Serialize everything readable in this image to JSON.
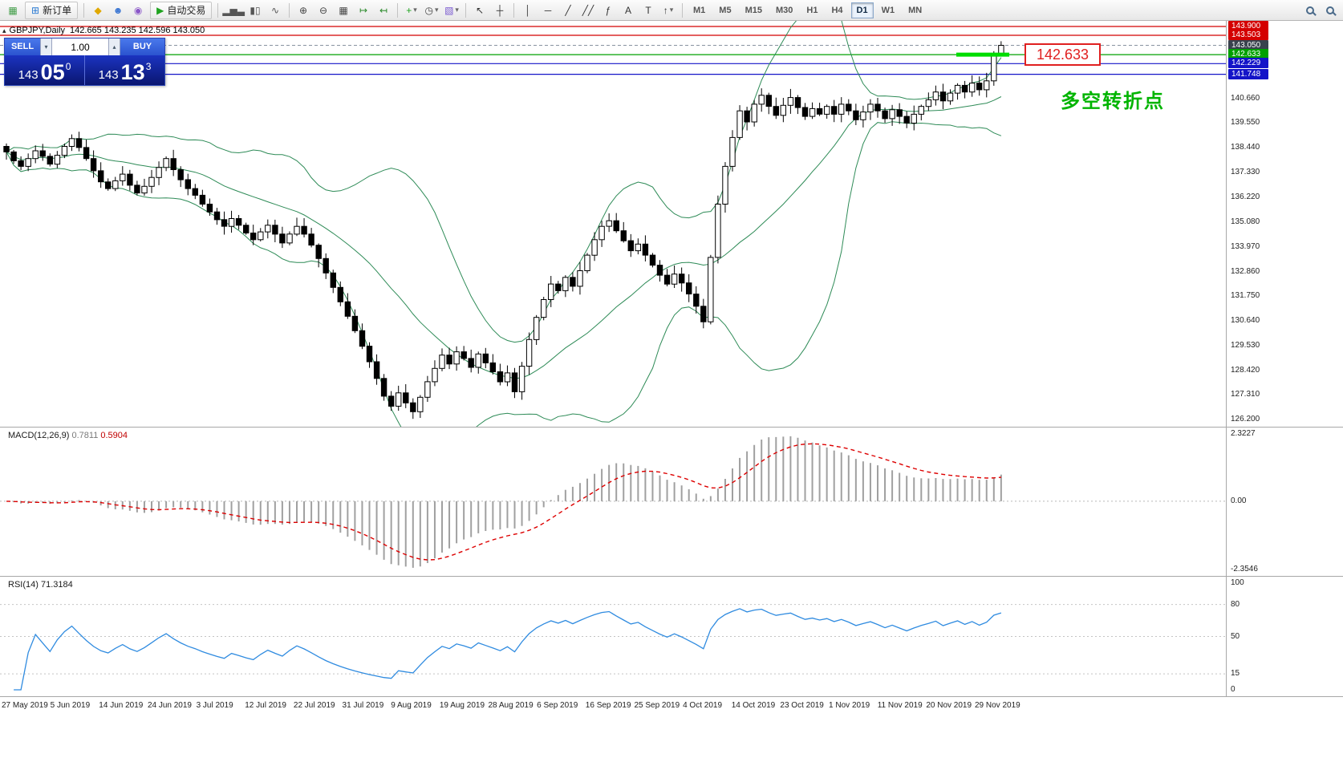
{
  "toolbar": {
    "timeframes": [
      "M1",
      "M5",
      "M15",
      "M30",
      "H1",
      "H4",
      "D1",
      "W1",
      "MN"
    ],
    "active_timeframe": "D1",
    "items": [
      {
        "kind": "icon",
        "name": "app-icon",
        "glyph": "▦",
        "color": "#3f9c46"
      },
      {
        "kind": "labelbtn",
        "name": "new-order-button",
        "icon": "new-order-icon",
        "glyph": "⊞",
        "color": "#2a7ad2",
        "label": "新订单"
      },
      {
        "kind": "sep"
      },
      {
        "kind": "icon",
        "name": "market-watch-icon",
        "glyph": "◆",
        "color": "#e0a800"
      },
      {
        "kind": "icon",
        "name": "profile-icon",
        "glyph": "☻",
        "color": "#3b76d2"
      },
      {
        "kind": "icon",
        "name": "community-icon",
        "glyph": "◉",
        "color": "#8a56c8"
      },
      {
        "kind": "labelbtn",
        "name": "autotrading-button",
        "icon": "autotrading-play-icon",
        "glyph": "▶",
        "color": "#1fa31f",
        "label": "自动交易"
      },
      {
        "kind": "sep"
      },
      {
        "kind": "icon",
        "name": "bar-chart-icon",
        "glyph": "▂▅▃",
        "color": "#555555"
      },
      {
        "kind": "icon",
        "name": "candlestick-chart-icon",
        "glyph": "▮▯",
        "color": "#555555"
      },
      {
        "kind": "icon",
        "name": "line-chart-icon",
        "glyph": "∿",
        "color": "#555555"
      },
      {
        "kind": "sep"
      },
      {
        "kind": "icon",
        "name": "zoom-in-icon",
        "glyph": "⊕",
        "color": "#444444"
      },
      {
        "kind": "icon",
        "name": "zoom-out-icon",
        "glyph": "⊖",
        "color": "#444444"
      },
      {
        "kind": "icon",
        "name": "tile-windows-icon",
        "glyph": "▦",
        "color": "#444444"
      },
      {
        "kind": "icon",
        "name": "auto-scroll-icon",
        "glyph": "↦",
        "color": "#2a8a2a"
      },
      {
        "kind": "icon",
        "name": "chart-shift-icon",
        "glyph": "↤",
        "color": "#2a8a2a"
      },
      {
        "kind": "sep"
      },
      {
        "kind": "dropbtn",
        "name": "indicators-button",
        "icon": "add-indicator-icon",
        "glyph": "+",
        "color": "#1fa31f"
      },
      {
        "kind": "dropbtn",
        "name": "periods-button",
        "icon": "clock-icon",
        "glyph": "◷",
        "color": "#444444"
      },
      {
        "kind": "dropbtn",
        "name": "templates-button",
        "icon": "template-icon",
        "glyph": "▧",
        "color": "#7a5ad0"
      },
      {
        "kind": "sep"
      },
      {
        "kind": "icon",
        "name": "cursor-icon",
        "glyph": "↖",
        "color": "#333333"
      },
      {
        "kind": "icon",
        "name": "crosshair-icon",
        "glyph": "┼",
        "color": "#333333"
      },
      {
        "kind": "sep"
      },
      {
        "kind": "icon",
        "name": "vertical-line-icon",
        "glyph": "│",
        "color": "#333333"
      },
      {
        "kind": "icon",
        "name": "horizontal-line-icon",
        "glyph": "─",
        "color": "#333333"
      },
      {
        "kind": "icon",
        "name": "trend-line-icon",
        "glyph": "╱",
        "color": "#333333"
      },
      {
        "kind": "icon",
        "name": "channel-icon",
        "glyph": "╱╱",
        "color": "#333333"
      },
      {
        "kind": "icon",
        "name": "fibonacci-icon",
        "glyph": "ƒ",
        "color": "#333333"
      },
      {
        "kind": "icon",
        "name": "text-icon",
        "glyph": "A",
        "color": "#333333"
      },
      {
        "kind": "icon",
        "name": "label-icon",
        "glyph": "T",
        "color": "#333333"
      },
      {
        "kind": "dropbtn",
        "name": "shapes-button",
        "icon": "arrow-shape-icon",
        "glyph": "↑",
        "color": "#333333"
      },
      {
        "kind": "sep"
      },
      {
        "kind": "timeframes"
      },
      {
        "kind": "spacer"
      },
      {
        "kind": "search",
        "name": "search-symbol-icon"
      },
      {
        "kind": "search",
        "name": "search-icon"
      }
    ]
  },
  "chart": {
    "symbol_period": "GBPJPY,Daily",
    "ohlc_text": "142.665 143.235 142.596 143.050",
    "annotation_price": "142.633",
    "note_text": "多空转折点",
    "trade_panel": {
      "sell_label": "SELL",
      "buy_label": "BUY",
      "lot": "1.00",
      "sell_price": {
        "prefix": "143",
        "big": "05",
        "sup": "0"
      },
      "buy_price": {
        "prefix": "143",
        "big": "13",
        "sup": "3"
      }
    },
    "hlines": [
      {
        "price": 143.9,
        "label": "143.900",
        "color": "#d40000",
        "box": "#d40000",
        "style": "solid"
      },
      {
        "price": 143.503,
        "label": "143.503",
        "color": "#d40000",
        "box": "#d40000",
        "style": "solid"
      },
      {
        "price": 143.05,
        "label": "143.050",
        "color": "#8892a0",
        "box": "#39424e",
        "style": "dashed"
      },
      {
        "price": 142.633,
        "label": "142.633",
        "color": "#00a000",
        "box": "#00a000",
        "style": "solid"
      },
      {
        "price": 142.229,
        "label": "142.229",
        "color": "#1414c8",
        "box": "#1414c8",
        "style": "solid"
      },
      {
        "price": 141.748,
        "label": "141.748",
        "color": "#1414c8",
        "box": "#1414c8",
        "style": "solid"
      }
    ],
    "scale_ticks": [
      "140.660",
      "139.550",
      "138.440",
      "137.330",
      "136.220",
      "135.080",
      "133.970",
      "132.860",
      "131.750",
      "130.640",
      "129.530",
      "128.420",
      "127.310",
      "126.200"
    ],
    "highlight_segment": {
      "price": 142.633,
      "color": "#00dd00"
    }
  },
  "macd": {
    "label_name": "MACD(12,26,9)",
    "value_main": "0.7811",
    "value_signal": "0.5904",
    "scale": [
      "2.3227",
      "0.00",
      "-2.3546"
    ]
  },
  "rsi": {
    "label_name": "RSI(14)",
    "label_value": "71.3184",
    "scale": [
      "100",
      "80",
      "50",
      "15",
      "0"
    ],
    "levels": [
      80,
      50,
      15
    ]
  },
  "chart_data": {
    "type": "candlestick",
    "symbol": "GBPJPY",
    "period": "Daily",
    "title": "GBPJPY Daily with Bollinger Bands(20,2), MACD(12,26,9), RSI(14)",
    "ylim": [
      126.2,
      143.9
    ],
    "hline_prices": [
      143.9,
      143.503,
      143.05,
      142.633,
      142.229,
      141.748
    ],
    "last_candle": {
      "open": 142.665,
      "high": 143.235,
      "low": 142.596,
      "close": 143.05
    },
    "closes": [
      138.25,
      137.85,
      137.6,
      137.95,
      138.3,
      138.05,
      137.7,
      138.1,
      138.5,
      138.85,
      138.45,
      137.95,
      137.4,
      136.9,
      136.6,
      136.95,
      137.25,
      136.75,
      136.4,
      136.7,
      137.1,
      137.55,
      137.95,
      137.45,
      137.0,
      136.6,
      136.3,
      135.9,
      135.55,
      135.2,
      134.9,
      135.25,
      134.95,
      134.6,
      134.3,
      134.65,
      134.95,
      134.55,
      134.15,
      134.55,
      134.9,
      134.55,
      134.05,
      133.45,
      132.8,
      132.15,
      131.5,
      130.85,
      130.2,
      129.5,
      128.8,
      128.05,
      127.25,
      126.8,
      127.4,
      126.95,
      126.55,
      127.2,
      127.9,
      128.5,
      129.1,
      128.7,
      129.25,
      128.95,
      128.55,
      129.15,
      128.75,
      128.35,
      127.9,
      128.3,
      127.45,
      128.6,
      129.8,
      130.8,
      131.6,
      132.3,
      132.0,
      132.6,
      132.2,
      132.9,
      133.6,
      134.3,
      134.9,
      135.15,
      134.7,
      134.25,
      133.8,
      134.1,
      133.6,
      133.15,
      132.7,
      132.3,
      132.75,
      132.35,
      131.85,
      131.3,
      130.6,
      133.5,
      135.9,
      137.6,
      138.9,
      140.1,
      139.6,
      140.4,
      140.8,
      140.3,
      139.9,
      140.35,
      140.7,
      140.25,
      139.85,
      140.2,
      139.95,
      140.3,
      139.95,
      140.4,
      140.1,
      139.7,
      140.05,
      140.4,
      140.1,
      139.75,
      140.15,
      139.85,
      139.55,
      139.95,
      140.3,
      140.6,
      140.95,
      140.55,
      140.9,
      141.25,
      140.95,
      141.35,
      141.05,
      141.45,
      142.6,
      143.05
    ],
    "indicators": {
      "bollinger": {
        "period": 20,
        "deviation": 2,
        "color": "#2E8B57"
      },
      "macd": {
        "fast": 12,
        "slow": 26,
        "signal": 9,
        "histogram_color": "#a0a0a0",
        "signal_color": "#dd0000"
      },
      "rsi": {
        "period": 14,
        "color": "#2f8be0"
      }
    },
    "date_labels": [
      "27 May 2019",
      "5 Jun 2019",
      "14 Jun 2019",
      "24 Jun 2019",
      "3 Jul 2019",
      "12 Jul 2019",
      "22 Jul 2019",
      "31 Jul 2019",
      "9 Aug 2019",
      "19 Aug 2019",
      "28 Aug 2019",
      "6 Sep 2019",
      "16 Sep 2019",
      "25 Sep 2019",
      "4 Oct 2019",
      "14 Oct 2019",
      "23 Oct 2019",
      "1 Nov 2019",
      "11 Nov 2019",
      "20 Nov 2019",
      "29 Nov 2019"
    ]
  }
}
